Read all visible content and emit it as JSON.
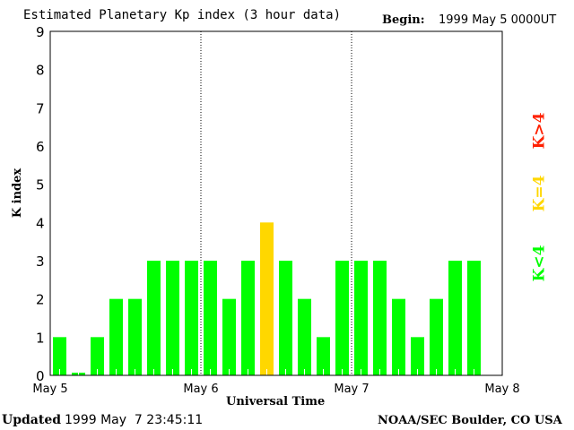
{
  "header": {
    "title": "Estimated Planetary Kp index (3 hour data)",
    "begin_label": "Begin:",
    "begin_value": "1999 May 5 0000UT"
  },
  "footer": {
    "updated_label": "Updated",
    "updated_value": "1999 May  7 23:45:11",
    "source": "NOAA/SEC Boulder, CO USA"
  },
  "legend": [
    {
      "label": "K>4",
      "color": "#ff2000"
    },
    {
      "label": "K=4",
      "color": "#ffd700"
    },
    {
      "label": "K<4",
      "color": "#00ff00"
    }
  ],
  "chart_data": {
    "type": "bar",
    "title": "Estimated Planetary Kp index (3 hour data)",
    "xlabel": "Universal Time",
    "ylabel": "K index",
    "ylim": [
      0,
      9
    ],
    "yticks": [
      "0",
      "1",
      "2",
      "3",
      "4",
      "5",
      "6",
      "7",
      "8",
      "9"
    ],
    "xticks": [
      "May 5",
      "May 6",
      "May 7",
      "May 8"
    ],
    "interval_hours": 3,
    "values": [
      1,
      0,
      1,
      2,
      2,
      3,
      3,
      3,
      3,
      2,
      3,
      4,
      3,
      2,
      1,
      3,
      3,
      3,
      2,
      1,
      2,
      3,
      3
    ],
    "colors": {
      "below4": "#00ff00",
      "equal4": "#ffd700",
      "above4": "#ff2000"
    },
    "day_separators": "dotted"
  }
}
